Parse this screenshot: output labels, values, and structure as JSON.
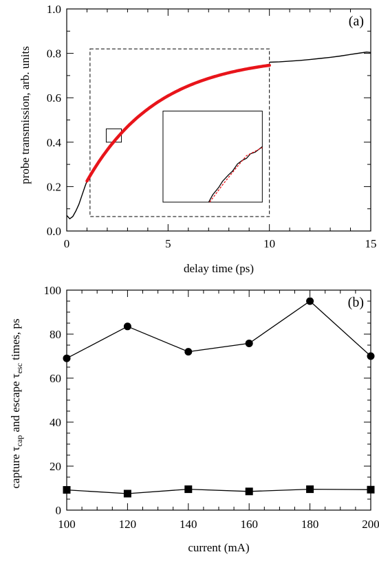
{
  "chart_data": [
    {
      "type": "line",
      "panel_label": "(a)",
      "xlabel": "delay time (ps)",
      "ylabel": "probe transmission, arb. units",
      "xlim": [
        0,
        15
      ],
      "ylim": [
        0.0,
        1.0
      ],
      "x_ticks": [
        0,
        5,
        10,
        15
      ],
      "x_tick_labels": [
        "0",
        "5",
        "10",
        "15"
      ],
      "y_ticks": [
        0.0,
        0.2,
        0.4,
        0.6,
        0.8,
        1.0
      ],
      "y_tick_labels": [
        "0.0",
        "0.2",
        "0.4",
        "0.6",
        "0.8",
        "1.0"
      ],
      "grid": false,
      "series": [
        {
          "color": "#000000",
          "x": [
            0.0,
            0.15,
            0.3,
            0.45,
            0.6,
            0.75,
            0.9,
            1.0,
            10.0,
            10.5,
            11.0,
            11.5,
            12.0,
            12.5,
            13.0,
            13.5,
            14.0,
            14.5,
            14.8,
            15.0
          ],
          "y": [
            0.07,
            0.055,
            0.065,
            0.09,
            0.12,
            0.16,
            0.2,
            0.225,
            0.76,
            0.762,
            0.765,
            0.768,
            0.772,
            0.777,
            0.782,
            0.788,
            0.795,
            0.802,
            0.806,
            0.804
          ]
        },
        {
          "color": "#e8141a",
          "fit": "exponential",
          "amplitude": 0.79,
          "offset": 0.225,
          "start": 1.0,
          "tau": 3.52,
          "x_range": [
            1.0,
            10.0
          ]
        }
      ],
      "boxes": [
        {
          "role": "fit-region",
          "style": "dashed",
          "x": [
            1.15,
            10.0
          ],
          "y": [
            0.065,
            0.82
          ]
        },
        {
          "role": "zoom-region",
          "style": "solid",
          "x": [
            1.95,
            2.7
          ],
          "y": [
            0.4,
            0.46
          ]
        },
        {
          "role": "inset",
          "style": "solid",
          "x": [
            4.75,
            9.65
          ],
          "y": [
            0.13,
            0.54
          ]
        }
      ]
    },
    {
      "type": "line",
      "panel_label": "(b)",
      "xlabel": "current (mA)",
      "ylabel": "capture τcap and escape τesc times, ps",
      "ylabel_parts": {
        "prefix": "capture τ",
        "sub1": "cap",
        "middle": " and escape τ",
        "sub2": "esc",
        "suffix": " times, ps"
      },
      "xlim": [
        100,
        200
      ],
      "ylim": [
        0,
        100
      ],
      "x_ticks": [
        100,
        120,
        140,
        160,
        180,
        200
      ],
      "x_tick_labels": [
        "100",
        "120",
        "140",
        "160",
        "180",
        "200"
      ],
      "y_ticks": [
        0,
        20,
        40,
        60,
        80,
        100
      ],
      "y_tick_labels": [
        "0",
        "20",
        "40",
        "60",
        "80",
        "100"
      ],
      "grid": false,
      "categories": [
        100,
        120,
        140,
        160,
        180,
        200
      ],
      "series": [
        {
          "marker": "circle",
          "color": "#000000",
          "values": [
            69,
            83.5,
            72,
            75.8,
            95,
            70
          ]
        },
        {
          "marker": "square",
          "color": "#000000",
          "values": [
            9.2,
            7.5,
            9.5,
            8.5,
            9.5,
            9.3
          ]
        }
      ]
    }
  ]
}
